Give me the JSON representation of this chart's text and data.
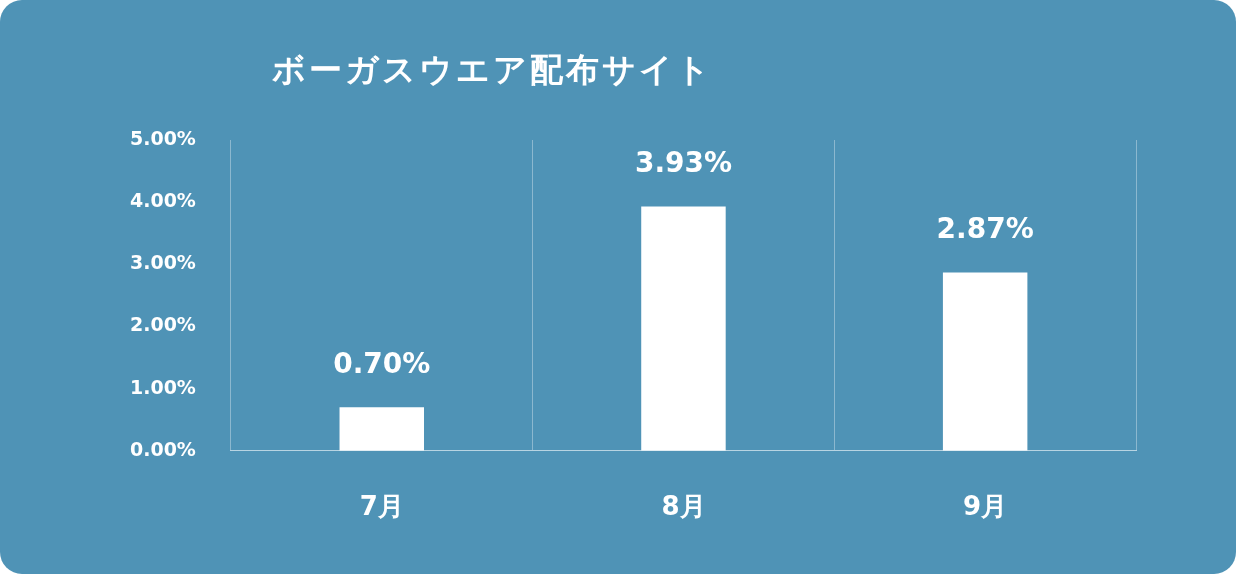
{
  "chart_data": {
    "type": "bar",
    "title": "ボーガスウエア配布サイト",
    "categories": [
      "7月",
      "8月",
      "9月"
    ],
    "values": [
      0.7,
      3.93,
      2.87
    ],
    "value_labels": [
      "0.70%",
      "3.93%",
      "2.87%"
    ],
    "color": "#ffffff",
    "ylim": [
      0,
      5
    ],
    "yticks": [
      {
        "value": 0,
        "label": "0.00%"
      },
      {
        "value": 1,
        "label": "1.00%"
      },
      {
        "value": 2,
        "label": "2.00%"
      },
      {
        "value": 3,
        "label": "3.00%"
      },
      {
        "value": 4,
        "label": "4.00%"
      },
      {
        "value": 5,
        "label": "5.00%"
      }
    ],
    "grid": "x",
    "legend": false
  }
}
